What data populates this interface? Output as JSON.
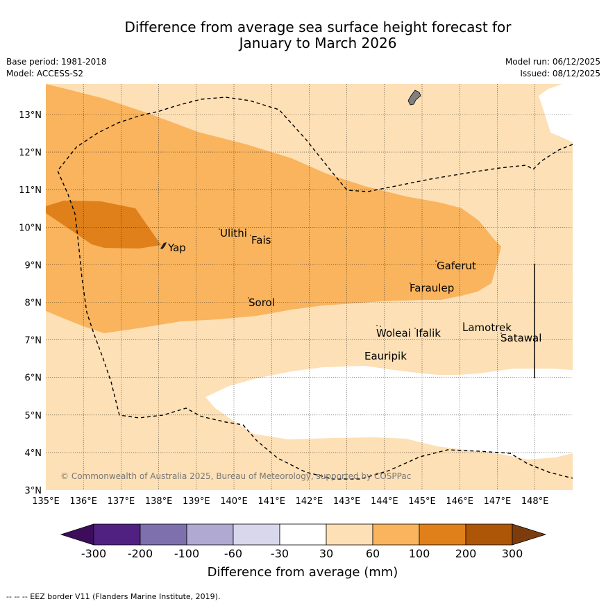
{
  "title": {
    "line1": "Difference from average sea surface height forecast for",
    "line2": "January to March 2026"
  },
  "meta": {
    "base_period": "Base period: 1981-2018",
    "model": "Model: ACCESS-S2",
    "model_run": "Model run: 06/12/2025",
    "issued": "Issued: 08/12/2025"
  },
  "map": {
    "lon_labels": [
      "135°E",
      "136°E",
      "137°E",
      "138°E",
      "139°E",
      "140°E",
      "141°E",
      "142°E",
      "143°E",
      "144°E",
      "145°E",
      "146°E",
      "147°E",
      "148°E"
    ],
    "lat_labels": [
      "3°N",
      "4°N",
      "5°N",
      "6°N",
      "7°N",
      "8°N",
      "9°N",
      "10°N",
      "11°N",
      "12°N",
      "13°N"
    ],
    "places": [
      "Ulithi",
      "Fais",
      "Yap",
      "Gaferut",
      "Faraulep",
      "Sorol",
      "Woleai",
      "Ifalik",
      "Lamotrek",
      "Satawal",
      "Eauripik"
    ],
    "copyright": "© Commonwealth of Australia 2025, Bureau of Meteorology, supported by COSPPac",
    "colors": {
      "band_30_60": "#fde0b5",
      "band_60_100": "#f9b45d",
      "band_100_200": "#e0801a",
      "neutral": "#ffffff",
      "land": "#808080"
    }
  },
  "colorbar": {
    "ticks": [
      "-300",
      "-200",
      "-100",
      "-60",
      "-30",
      "30",
      "60",
      "100",
      "200",
      "300"
    ],
    "colors": [
      "#3d0d5c",
      "#512182",
      "#7d70ad",
      "#b0a9d2",
      "#d8d7eb",
      "#ffffff",
      "#fde0b5",
      "#f9b45d",
      "#e0801a",
      "#ae5608",
      "#7c3c0e"
    ],
    "label": "Difference from average (mm)"
  },
  "footer": "--  --  -- EEZ border V11 (Flanders Marine Institute, 2019)."
}
